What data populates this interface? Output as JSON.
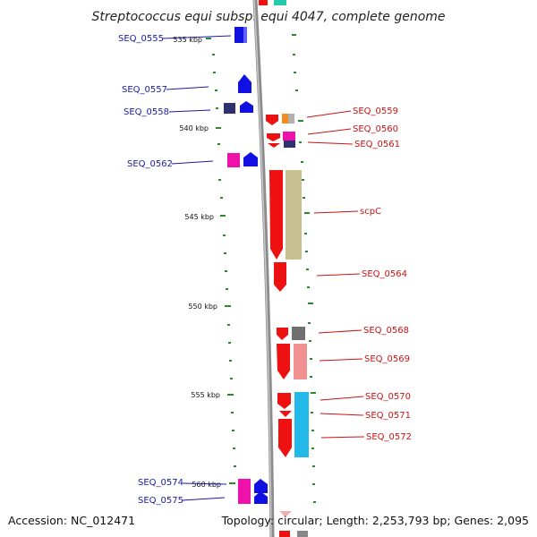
{
  "title": "Streptococcus equi subsp. equi 4047, complete genome",
  "footer": {
    "accession": "Accession: NC_012471",
    "info": "Topology: circular; Length: 2,253,793 bp; Genes: 2,095"
  },
  "colors": {
    "forward_label": "#1a1aa6",
    "reverse_label": "#cc1111",
    "tick": "#2a8a2a",
    "backbone": "#8c8c8c"
  },
  "ticks": [
    {
      "label": "535 kbp"
    },
    {
      "label": "540 kbp"
    },
    {
      "label": "545 kbp"
    },
    {
      "label": "550 kbp"
    },
    {
      "label": "555 kbp"
    },
    {
      "label": "560 kbp"
    }
  ],
  "labels_left": [
    {
      "text": "SEQ_0555"
    },
    {
      "text": "SEQ_0557"
    },
    {
      "text": "SEQ_0558"
    },
    {
      "text": "SEQ_0562"
    },
    {
      "text": "SEQ_0574"
    },
    {
      "text": "SEQ_0575"
    }
  ],
  "labels_right": [
    {
      "text": "SEQ_0559"
    },
    {
      "text": "SEQ_0560"
    },
    {
      "text": "SEQ_0561"
    },
    {
      "text": "scpC"
    },
    {
      "text": "SEQ_0564"
    },
    {
      "text": "SEQ_0568"
    },
    {
      "text": "SEQ_0569"
    },
    {
      "text": "SEQ_0570"
    },
    {
      "text": "SEQ_0571"
    },
    {
      "text": "SEQ_0572"
    }
  ]
}
